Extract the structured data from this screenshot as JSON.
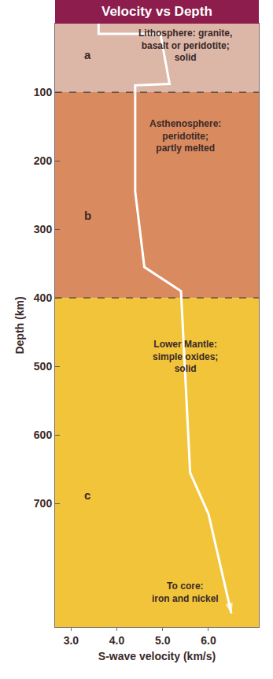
{
  "chart_data": {
    "type": "line",
    "title": "Velocity vs Depth",
    "x_label": "S-wave velocity (km/s)",
    "y_label": "Depth (km)",
    "x": [
      3.6,
      3.6,
      4.95,
      5.15,
      4.4,
      4.4,
      4.6,
      5.4,
      5.6,
      6.0,
      6.5
    ],
    "y": [
      0,
      15,
      15,
      88,
      90,
      245,
      355,
      390,
      655,
      715,
      860
    ],
    "color": "#ffffff",
    "line_style": "solid",
    "marker": "arrow-end",
    "xlim": [
      2.65,
      7.1
    ],
    "ylim": [
      880,
      0
    ],
    "xticks": [
      {
        "value": 3,
        "label": "3.0"
      },
      {
        "value": 4,
        "label": "4.0"
      },
      {
        "value": 5,
        "label": "5.0"
      },
      {
        "value": 6,
        "label": "6.0"
      }
    ],
    "yticks": [
      100,
      200,
      300,
      400,
      500,
      600,
      700
    ],
    "grid": false,
    "layers": [
      {
        "letter": "a",
        "text": [
          "Lithosphere: granite,",
          "basalt or peridotite;",
          "solid"
        ],
        "from": 0,
        "to": 100,
        "color": "#dcb6a6"
      },
      {
        "letter": "b",
        "text": [
          "Asthenosphere:",
          "peridotite;",
          "partly melted"
        ],
        "from": 100,
        "to": 400,
        "color": "#d98a5e"
      },
      {
        "letter": "c",
        "text": [
          "Lower Mantle:",
          "simple oxides;",
          "solid"
        ],
        "from": 400,
        "to": 880,
        "color": "#f2c43a"
      }
    ],
    "note": [
      "To core:",
      "iron and nickel"
    ]
  }
}
